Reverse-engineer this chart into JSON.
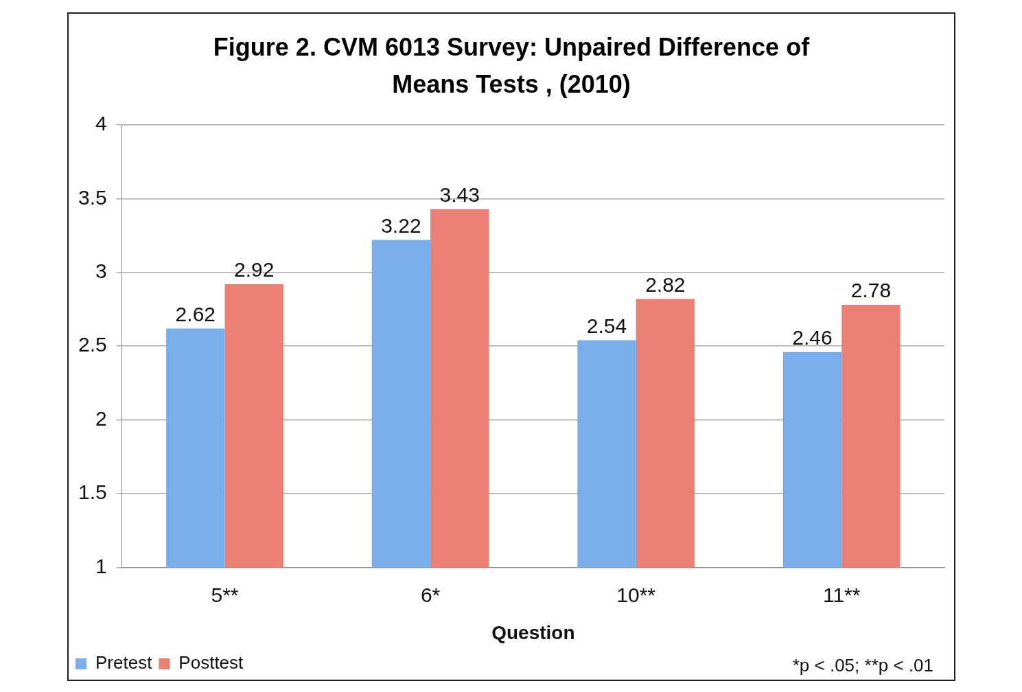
{
  "chart_data": {
    "type": "bar",
    "title": "Figure 2. CVM 6013 Survey: Unpaired Difference of Means Tests , (2010)",
    "xlabel": "Question",
    "categories": [
      "5**",
      "6*",
      "10**",
      "11**"
    ],
    "series": [
      {
        "name": "Pretest",
        "color": "#7aaeea",
        "values": [
          2.62,
          3.22,
          2.54,
          2.46
        ]
      },
      {
        "name": "Posttest",
        "color": "#ea7f76",
        "values": [
          2.92,
          3.43,
          2.82,
          2.78
        ]
      }
    ],
    "ylim": [
      1,
      4
    ],
    "yticks": [
      1,
      1.5,
      2,
      2.5,
      3,
      3.5,
      4
    ],
    "grid": "y",
    "legend": "bottom left",
    "data_labels": true,
    "annotations": [
      "*p < .05; **p < .01"
    ]
  }
}
